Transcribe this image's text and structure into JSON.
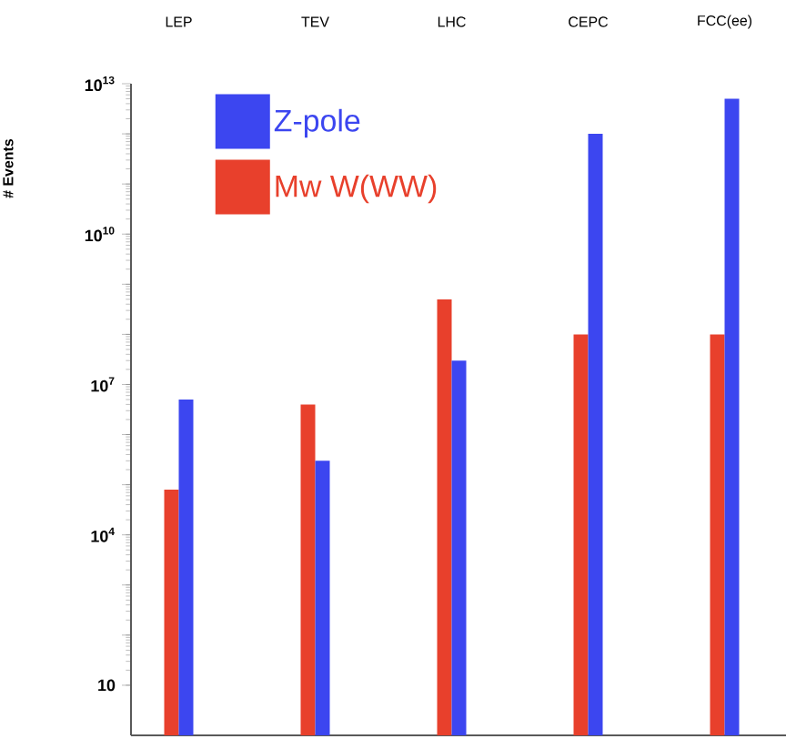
{
  "chart_data": {
    "type": "bar",
    "categories": [
      "LEP",
      "TEV",
      "LHC",
      "CEPC",
      "FCC(ee)"
    ],
    "series": [
      {
        "name": "Mw W(WW)",
        "color": "#e8402c",
        "values": [
          80000,
          4000000,
          500000000,
          100000000,
          100000000
        ]
      },
      {
        "name": "Z-pole",
        "color": "#3c46f0",
        "values": [
          5000000,
          300000,
          30000000,
          1000000000000,
          5000000000000
        ]
      }
    ],
    "ylabel": "# Events",
    "log": true,
    "ylim": [
      1,
      10000000000000
    ],
    "yticks": [
      10,
      {
        "value": 100,
        "label": null
      },
      {
        "value": 1000,
        "label": null
      },
      {
        "value": 10000,
        "label": "10$^{4}$"
      },
      {
        "value": 100000,
        "label": null
      },
      {
        "value": 1000000,
        "label": null
      },
      {
        "value": 10000000,
        "label": "10$^{7}$"
      },
      {
        "value": 100000000,
        "label": null
      },
      {
        "value": 1000000000,
        "label": null
      },
      {
        "value": 10000000000,
        "label": "10$^{10}$"
      },
      {
        "value": 100000000000,
        "label": null
      },
      {
        "value": 1000000000000,
        "label": null
      },
      {
        "value": 10000000000000,
        "label": "10$^{13}$"
      }
    ],
    "legend": "top left",
    "grid": false
  }
}
